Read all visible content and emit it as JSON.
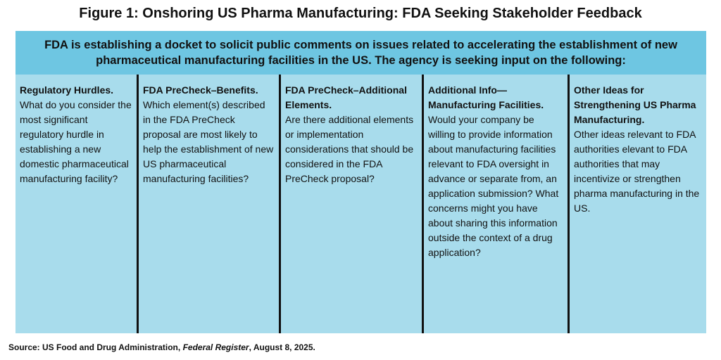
{
  "title": "Figure 1: Onshoring US Pharma Manufacturing: FDA Seeking Stakeholder Feedback",
  "banner": "FDA is establishing a docket to solicit public comments on issues related to accelerating the establishment of new pharmaceutical manufacturing facilities in the US. The agency is seeking input on the following:",
  "columns": [
    {
      "heading": "Regulatory Hurdles.",
      "body": "What do you consider the most significant regulatory hurdle in establishing a new domestic pharmaceutical manufacturing facility?"
    },
    {
      "heading": "FDA PreCheck–Benefits.",
      "body": "Which element(s) described in the FDA PreCheck proposal are most likely to help the establishment of new US pharmaceutical manufacturing facilities?"
    },
    {
      "heading": "FDA PreCheck–Additional Elements.",
      "body": "Are there additional elements or implementation considerations that should be considered in the FDA PreCheck proposal?"
    },
    {
      "heading": "Additional Info—Manufacturing Facilities.",
      "body": "Would your company be willing to provide information about manufacturing facilities relevant to FDA oversight in advance or separate from, an application submission? What concerns might you have about sharing this information outside the context of a drug application?"
    },
    {
      "heading": "Other Ideas for Strengthening US Pharma Manufacturing.",
      "body": "Other ideas relevant to FDA authorities elevant to FDA authorities that may incentivize or strengthen pharma manufacturing in the US."
    }
  ],
  "source": {
    "prefix": "Source: US Food and Drug Administration, ",
    "publication": "Federal Register",
    "suffix": ", August 8, 2025."
  },
  "colors": {
    "banner": "#6ec6e2",
    "panel": "#a8dcec",
    "divider": "#111111"
  }
}
